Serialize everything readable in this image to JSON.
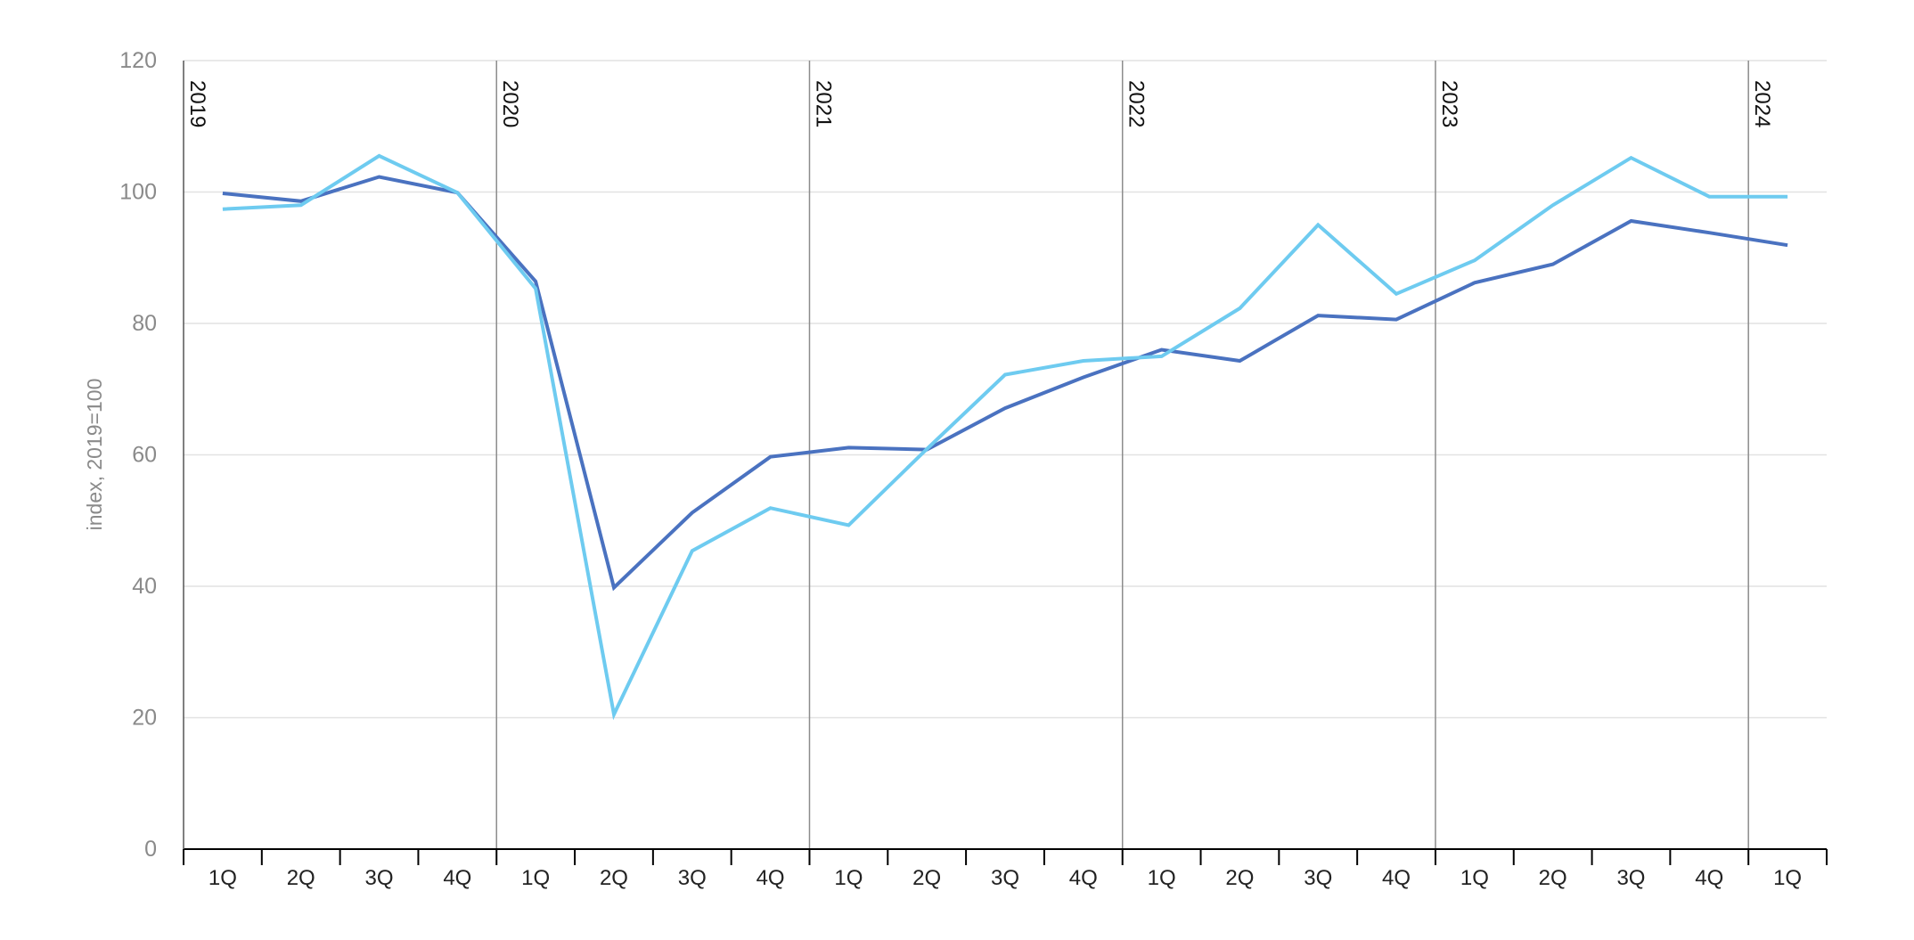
{
  "chart_data": {
    "type": "line",
    "title": "",
    "xlabel": "",
    "ylabel": "index, 2019=100",
    "ylim": [
      0,
      120
    ],
    "yticks": [
      0,
      20,
      40,
      60,
      80,
      100,
      120
    ],
    "grid": "horizontal",
    "categories": [
      "1Q",
      "2Q",
      "3Q",
      "4Q",
      "1Q",
      "2Q",
      "3Q",
      "4Q",
      "1Q",
      "2Q",
      "3Q",
      "4Q",
      "1Q",
      "2Q",
      "3Q",
      "4Q",
      "1Q",
      "2Q",
      "3Q",
      "4Q",
      "1Q"
    ],
    "year_markers": [
      {
        "label": "2019",
        "index": 0
      },
      {
        "label": "2020",
        "index": 4
      },
      {
        "label": "2021",
        "index": 8
      },
      {
        "label": "2022",
        "index": 12
      },
      {
        "label": "2023",
        "index": 16
      },
      {
        "label": "2024",
        "index": 20
      }
    ],
    "series": [
      {
        "color": "#4a72c0",
        "values": [
          99.8,
          98.6,
          102.3,
          99.9,
          86.4,
          39.8,
          51.2,
          59.7,
          61.1,
          60.8,
          67.1,
          71.8,
          76.0,
          74.3,
          81.2,
          80.6,
          86.2,
          89.0,
          95.6,
          93.8,
          91.9
        ]
      },
      {
        "color": "#6ecbf0",
        "values": [
          97.4,
          98.0,
          105.5,
          99.9,
          85.3,
          20.5,
          45.4,
          51.9,
          49.3,
          60.9,
          72.2,
          74.3,
          75.0,
          82.3,
          95.0,
          84.5,
          89.6,
          98.0,
          105.2,
          99.3,
          99.3
        ]
      }
    ]
  }
}
